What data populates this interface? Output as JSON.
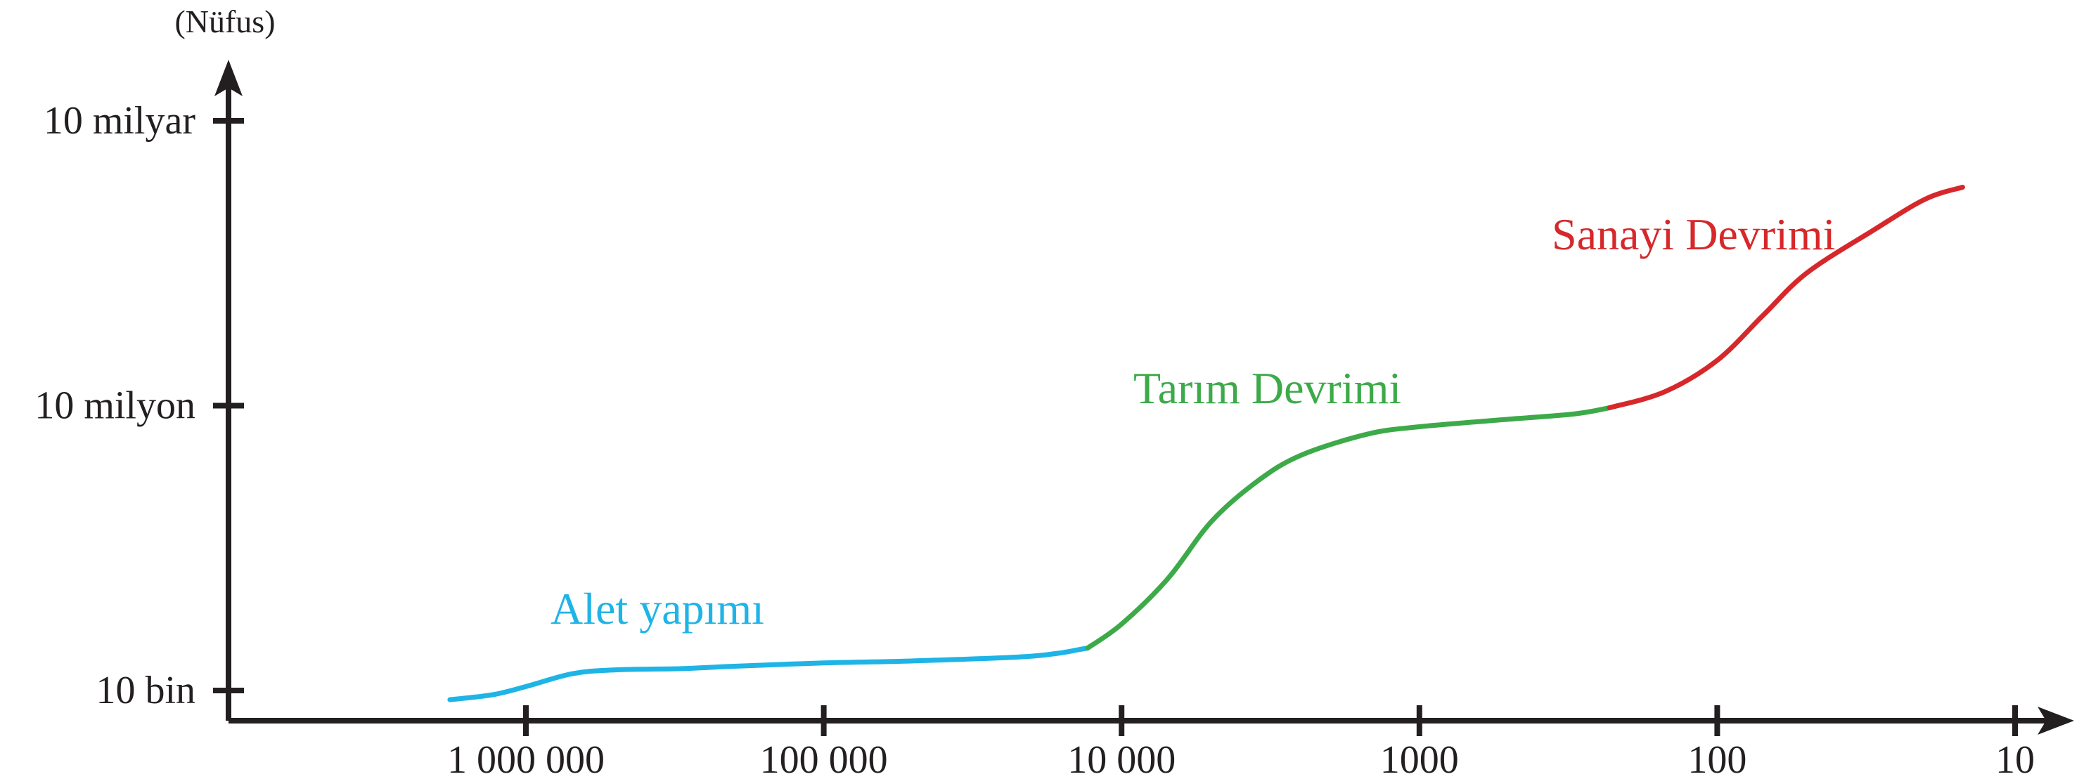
{
  "chart_data": {
    "type": "line",
    "title": "",
    "ylabel": "(Nüfus)",
    "xlabel": "",
    "x_scale": "log-reversed",
    "y_scale": "log",
    "grid": false,
    "x_ticks": [
      {
        "value": 1000000,
        "label": "1 000 000"
      },
      {
        "value": 100000,
        "label": "100 000"
      },
      {
        "value": 10000,
        "label": "10 000"
      },
      {
        "value": 1000,
        "label": "1000"
      },
      {
        "value": 100,
        "label": "100"
      },
      {
        "value": 10,
        "label": "10"
      }
    ],
    "y_ticks": [
      {
        "value": 10000,
        "label": "10 bin"
      },
      {
        "value": 10000000,
        "label": "10 milyon"
      },
      {
        "value": 10000000000,
        "label": "10 milyar"
      }
    ],
    "series": [
      {
        "name": "Alet yapımı",
        "color": "#1fb4e6",
        "x": [
          1800000,
          1300000,
          1000000,
          700000,
          500000,
          300000,
          200000,
          100000,
          50000,
          20000,
          13000
        ],
        "y": [
          8000,
          9000,
          11000,
          15000,
          16500,
          17000,
          18000,
          19500,
          20500,
          23000,
          28000
        ]
      },
      {
        "name": "Tarım Devrimi",
        "color": "#3daa49",
        "x": [
          13000,
          10000,
          7000,
          5000,
          3500,
          2500,
          1500,
          1000,
          500,
          300,
          230
        ],
        "y": [
          28000,
          50000,
          150000,
          600000,
          1600000,
          3000000,
          5000000,
          6000000,
          7200000,
          8200000,
          9500000
        ]
      },
      {
        "name": "Sanayi Devrimi",
        "color": "#d6282b",
        "x": [
          230,
          150,
          100,
          70,
          50,
          30,
          20,
          15
        ],
        "y": [
          9500000,
          14000000,
          30000000,
          90000000,
          250000000,
          700000000,
          1500000000,
          2000000000
        ]
      }
    ],
    "labels": [
      {
        "text": "Alet yapımı",
        "color": "#1fb4e6"
      },
      {
        "text": "Tarım Devrimi",
        "color": "#3daa49"
      },
      {
        "text": "Sanayi Devrimi",
        "color": "#d6282b"
      }
    ]
  },
  "colors": {
    "axis": "#231f20",
    "background": "#ffffff"
  }
}
